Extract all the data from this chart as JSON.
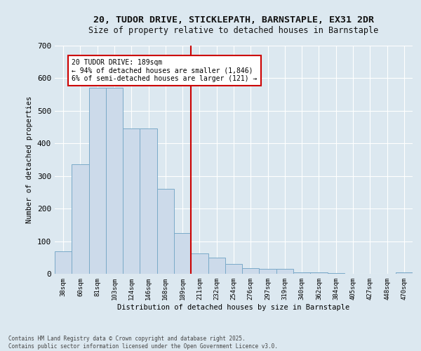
{
  "title_line1": "20, TUDOR DRIVE, STICKLEPATH, BARNSTAPLE, EX31 2DR",
  "title_line2": "Size of property relative to detached houses in Barnstaple",
  "xlabel": "Distribution of detached houses by size in Barnstaple",
  "ylabel": "Number of detached properties",
  "bar_color": "#ccdaea",
  "bar_edge_color": "#7aaac8",
  "vline_color": "#cc0000",
  "annotation_text": "20 TUDOR DRIVE: 189sqm\n← 94% of detached houses are smaller (1,846)\n6% of semi-detached houses are larger (121) →",
  "categories": [
    "38sqm",
    "60sqm",
    "81sqm",
    "103sqm",
    "124sqm",
    "146sqm",
    "168sqm",
    "189sqm",
    "211sqm",
    "232sqm",
    "254sqm",
    "276sqm",
    "297sqm",
    "319sqm",
    "340sqm",
    "362sqm",
    "384sqm",
    "405sqm",
    "427sqm",
    "448sqm",
    "470sqm"
  ],
  "values": [
    70,
    335,
    570,
    570,
    445,
    445,
    260,
    125,
    62,
    50,
    30,
    18,
    15,
    15,
    5,
    4,
    2,
    1,
    0,
    0,
    5
  ],
  "ylim": [
    0,
    700
  ],
  "yticks": [
    0,
    100,
    200,
    300,
    400,
    500,
    600,
    700
  ],
  "bg_color": "#dce8f0",
  "fig_bg_color": "#dce8f0",
  "footer_text": "Contains HM Land Registry data © Crown copyright and database right 2025.\nContains public sector information licensed under the Open Government Licence v3.0."
}
